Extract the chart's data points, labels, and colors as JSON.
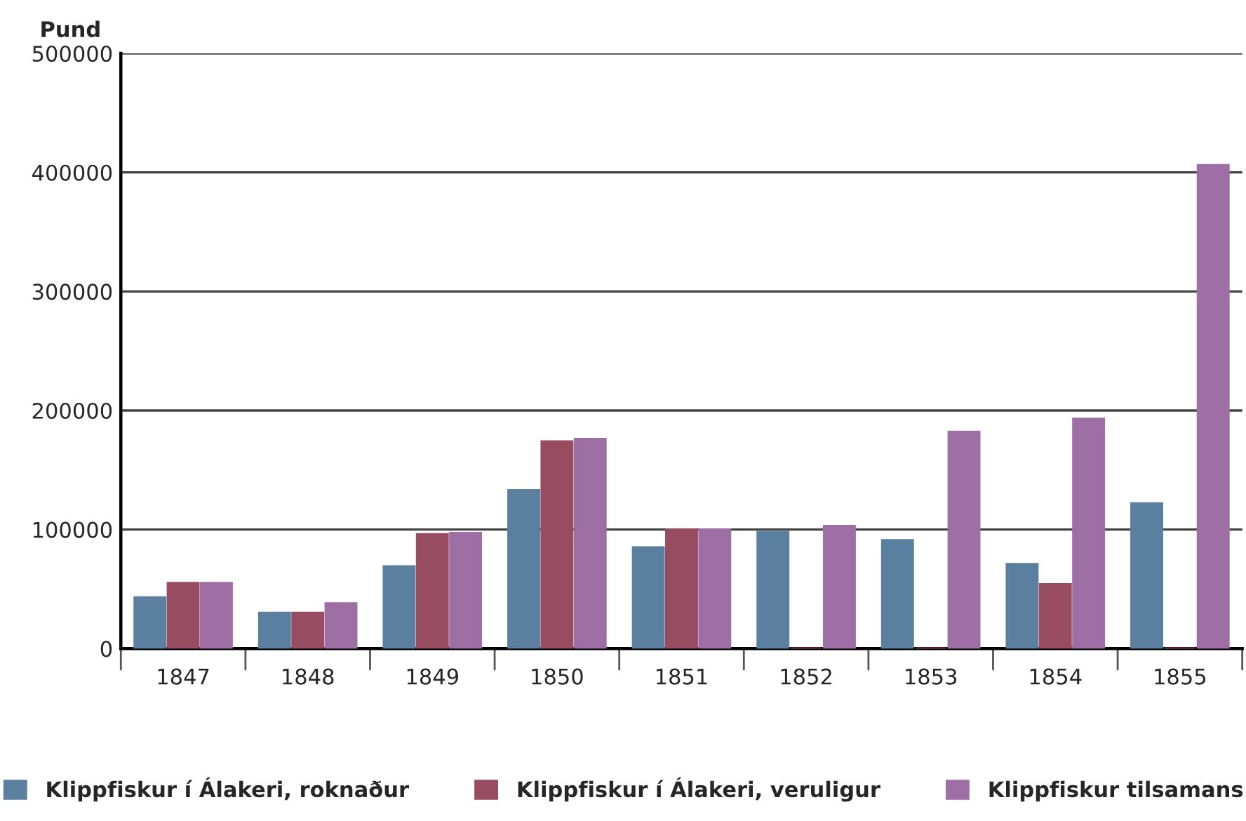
{
  "chart_data": {
    "type": "bar",
    "ylabel": "Pund",
    "categories": [
      "1847",
      "1848",
      "1849",
      "1850",
      "1851",
      "1852",
      "1853",
      "1854",
      "1855"
    ],
    "series": [
      {
        "name": "Klippfiskur í Álakeri, roknaður",
        "color": "#5b7f9e",
        "values": [
          43000,
          30000,
          69000,
          133000,
          85000,
          98000,
          91000,
          71000,
          122000
        ]
      },
      {
        "name": "Klippfiskur í Álakeri, veruligur",
        "color": "#984c62",
        "values": [
          55000,
          30000,
          96000,
          174000,
          100000,
          0,
          0,
          54000,
          0
        ]
      },
      {
        "name": "Klippfiskur tilsamans",
        "color": "#9d6fa4",
        "values": [
          55000,
          38000,
          97000,
          176000,
          100000,
          103000,
          182000,
          193000,
          406000
        ]
      }
    ],
    "ylim": [
      0,
      500000
    ],
    "yticks": [
      0,
      100000,
      200000,
      300000,
      400000,
      500000
    ],
    "grid": "y",
    "legend": "bottom"
  }
}
